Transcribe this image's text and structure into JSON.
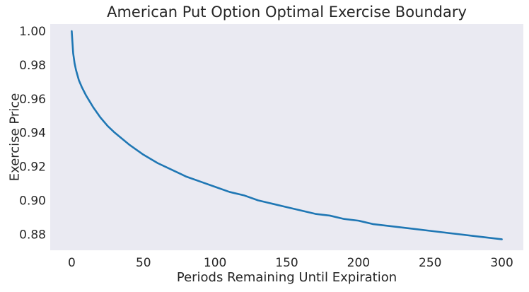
{
  "chart_data": {
    "type": "line",
    "title": "American Put Option Optimal Exercise Boundary",
    "xlabel": "Periods Remaining Until Expiration",
    "ylabel": "Exercise Price",
    "xlim": [
      -15,
      315
    ],
    "ylim": [
      0.8705,
      1.0042
    ],
    "xticks": [
      0,
      50,
      100,
      150,
      200,
      250,
      300
    ],
    "xtick_labels": [
      "0",
      "50",
      "100",
      "150",
      "200",
      "250",
      "300"
    ],
    "yticks": [
      0.88,
      0.9,
      0.92,
      0.94,
      0.96,
      0.98,
      1.0
    ],
    "ytick_labels": [
      "0.88",
      "0.90",
      "0.92",
      "0.94",
      "0.96",
      "0.98",
      "1.00"
    ],
    "grid": false,
    "background_color": "#eaeaf2",
    "series": [
      {
        "color": "#1f77b4",
        "x": [
          0,
          1,
          2,
          3,
          5,
          7,
          10,
          15,
          20,
          25,
          30,
          40,
          50,
          60,
          70,
          80,
          90,
          100,
          110,
          120,
          130,
          140,
          150,
          160,
          170,
          180,
          190,
          200,
          210,
          220,
          230,
          240,
          250,
          260,
          270,
          280,
          290,
          300
        ],
        "y": [
          1.0,
          0.987,
          0.981,
          0.977,
          0.971,
          0.967,
          0.962,
          0.955,
          0.949,
          0.944,
          0.94,
          0.933,
          0.927,
          0.922,
          0.918,
          0.914,
          0.911,
          0.908,
          0.905,
          0.903,
          0.9,
          0.898,
          0.896,
          0.894,
          0.892,
          0.891,
          0.889,
          0.888,
          0.886,
          0.885,
          0.884,
          0.883,
          0.882,
          0.881,
          0.88,
          0.879,
          0.878,
          0.877
        ]
      }
    ]
  }
}
